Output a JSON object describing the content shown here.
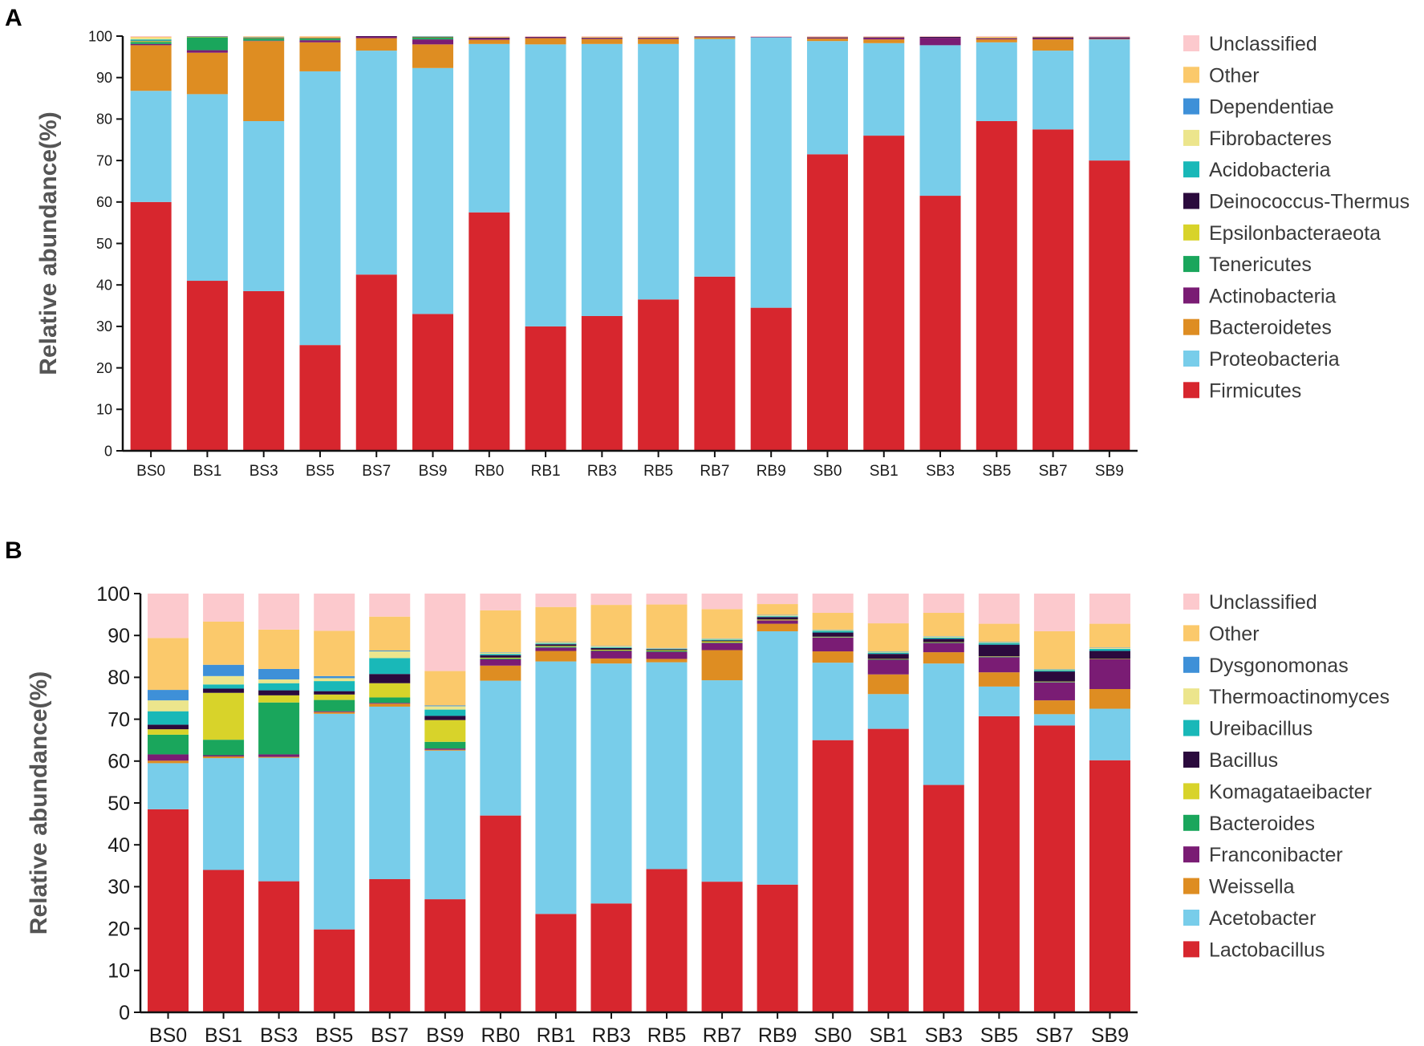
{
  "panels": [
    {
      "label": "A"
    },
    {
      "label": "B"
    }
  ],
  "chart_data": [
    {
      "type": "bar",
      "stacked": true,
      "title": "",
      "xlabel": "",
      "ylabel": "Relative abundance(%)",
      "ylim": [
        0,
        100
      ],
      "yticks": [
        "0",
        "10",
        "20",
        "30",
        "40",
        "50",
        "60",
        "70",
        "80",
        "90",
        "100"
      ],
      "categories": [
        "BS0",
        "BS1",
        "BS3",
        "BS5",
        "BS7",
        "BS9",
        "RB0",
        "RB1",
        "RB3",
        "RB5",
        "RB7",
        "RB9",
        "SB0",
        "SB1",
        "SB3",
        "SB5",
        "SB7",
        "SB9"
      ],
      "legend_position": "right",
      "series": [
        {
          "name": "Firmicutes",
          "color": "#d7262e",
          "values": [
            60,
            41,
            38.5,
            25.5,
            42.5,
            33,
            57.5,
            30,
            32.5,
            36.5,
            42,
            34.5,
            71.5,
            76,
            61.5,
            79.5,
            77.5,
            70
          ]
        },
        {
          "name": "Proteobacteria",
          "color": "#78cdea",
          "values": [
            26.8,
            45,
            41,
            66,
            54,
            59.3,
            40.6,
            68,
            65.6,
            61.6,
            57.3,
            65.2,
            27.3,
            22.3,
            36.3,
            19,
            19,
            29.2
          ]
        },
        {
          "name": "Bacteroidetes",
          "color": "#de8d22",
          "values": [
            11,
            10,
            19.3,
            7,
            3,
            5.7,
            1,
            1.5,
            1.2,
            1.2,
            0.4,
            0,
            0.6,
            0.9,
            0,
            0.7,
            2.7,
            0.1
          ]
        },
        {
          "name": "Actinobacteria",
          "color": "#7a1c74",
          "values": [
            0.3,
            0.6,
            0.1,
            0.5,
            0.4,
            1.2,
            0.3,
            0.2,
            0.2,
            0.2,
            0.1,
            0.1,
            0.2,
            0.4,
            1.8,
            0.2,
            0.3,
            0.2
          ]
        },
        {
          "name": "Tenericutes",
          "color": "#1aa65c",
          "values": [
            0.5,
            3.1,
            0.5,
            0.4,
            0,
            0.4,
            0,
            0,
            0,
            0,
            0,
            0,
            0,
            0,
            0,
            0,
            0,
            0
          ]
        },
        {
          "name": "Epsilonbacteraeota",
          "color": "#d8d32a",
          "values": [
            0.2,
            0.1,
            0.1,
            0.1,
            0,
            0.1,
            0,
            0,
            0,
            0,
            0,
            0,
            0,
            0,
            0,
            0,
            0,
            0
          ]
        },
        {
          "name": "Deinococcus-Thermus",
          "color": "#2b0a3d",
          "values": [
            0.1,
            0.1,
            0.1,
            0.1,
            0.1,
            0.1,
            0.2,
            0.1,
            0.1,
            0.1,
            0.1,
            0,
            0.1,
            0.1,
            0.2,
            0.1,
            0.2,
            0.2
          ]
        },
        {
          "name": "Acidobacteria",
          "color": "#19b8b8",
          "values": [
            0.3,
            0,
            0.1,
            0,
            0,
            0.1,
            0,
            0,
            0,
            0,
            0,
            0,
            0,
            0,
            0,
            0,
            0,
            0
          ]
        },
        {
          "name": "Fibrobacteres",
          "color": "#ece58c",
          "values": [
            0.4,
            0,
            0,
            0,
            0,
            0,
            0,
            0,
            0,
            0,
            0,
            0,
            0,
            0,
            0,
            0,
            0,
            0
          ]
        },
        {
          "name": "Dependentiae",
          "color": "#3e90d8",
          "values": [
            0,
            0,
            0,
            0,
            0,
            0,
            0,
            0,
            0,
            0,
            0,
            0,
            0,
            0,
            0,
            0,
            0,
            0
          ]
        },
        {
          "name": "Other",
          "color": "#fbc96b",
          "values": [
            0.2,
            0,
            0.2,
            0.3,
            0,
            0,
            0.2,
            0,
            0.2,
            0.2,
            0,
            0,
            0.1,
            0.1,
            0,
            0.3,
            0.1,
            0
          ]
        },
        {
          "name": "Unclassified",
          "color": "#fcc9cd",
          "values": [
            0.2,
            0,
            0.1,
            0.1,
            0,
            0.1,
            0.2,
            0.2,
            0.2,
            0.2,
            0.1,
            0.2,
            0.2,
            0.2,
            0.2,
            0.2,
            0.2,
            0.3
          ]
        }
      ]
    },
    {
      "type": "bar",
      "stacked": true,
      "title": "",
      "xlabel": "",
      "ylabel": "Relative abundance(%)",
      "ylim": [
        0,
        100
      ],
      "yticks": [
        "0",
        "10",
        "20",
        "30",
        "40",
        "50",
        "60",
        "70",
        "80",
        "90",
        "100"
      ],
      "categories": [
        "BS0",
        "BS1",
        "BS3",
        "BS5",
        "BS7",
        "BS9",
        "RB0",
        "RB1",
        "RB3",
        "RB5",
        "RB7",
        "RB9",
        "SB0",
        "SB1",
        "SB3",
        "SB5",
        "SB7",
        "SB9"
      ],
      "legend_position": "right",
      "series": [
        {
          "name": "Lactobacillus",
          "color": "#d7262e",
          "values": [
            48.5,
            34,
            31.3,
            19.8,
            31.8,
            27,
            47,
            23.5,
            26,
            34.2,
            31.2,
            30.5,
            65,
            67.7,
            54.3,
            70.7,
            68.5,
            60.2
          ]
        },
        {
          "name": "Acetobacter",
          "color": "#78cdea",
          "values": [
            11,
            26.7,
            29.5,
            51.5,
            41.2,
            35.5,
            32.2,
            60.3,
            57.3,
            49.4,
            48.1,
            60.5,
            18.5,
            8.3,
            29,
            7.1,
            2.7,
            12.3
          ]
        },
        {
          "name": "Weissella",
          "color": "#de8d22",
          "values": [
            0.6,
            0.4,
            0.2,
            0.4,
            0.7,
            0.2,
            3.6,
            2.5,
            1.2,
            0.8,
            7.2,
            1.8,
            2.7,
            4.7,
            2.7,
            3.4,
            3.3,
            4.7
          ]
        },
        {
          "name": "Franconibacter",
          "color": "#7a1c74",
          "values": [
            1.5,
            0.3,
            0.6,
            0.2,
            0.2,
            0.3,
            1.5,
            0.8,
            1.8,
            1.7,
            1.7,
            0.8,
            3.3,
            3.5,
            2.2,
            3.6,
            4.3,
            7.1
          ]
        },
        {
          "name": "Bacteroides",
          "color": "#1aa65c",
          "values": [
            4.7,
            3.7,
            12.4,
            2.7,
            1.3,
            1.6,
            0.2,
            0.2,
            0.1,
            0.2,
            0.1,
            0,
            0.1,
            0.1,
            0.1,
            0.1,
            0.1,
            0
          ]
        },
        {
          "name": "Komagataeibacter",
          "color": "#d8d32a",
          "values": [
            1.3,
            11.2,
            1.7,
            1.3,
            3.4,
            5.2,
            0.2,
            0.2,
            0.2,
            0.2,
            0.3,
            0.2,
            0.1,
            0.1,
            0.1,
            0.1,
            0.1,
            0.1
          ]
        },
        {
          "name": "Bacillus",
          "color": "#2b0a3d",
          "values": [
            1.1,
            1,
            1.2,
            0.8,
            2.2,
            1,
            0.6,
            0.4,
            0.4,
            0.2,
            0.2,
            0.6,
            1,
            1.2,
            0.8,
            2.8,
            2.4,
            1.9
          ]
        },
        {
          "name": "Ureibacillus",
          "color": "#19b8b8",
          "values": [
            3.2,
            1,
            1.7,
            2.4,
            3.8,
            1.5,
            0.3,
            0.2,
            0.2,
            0.1,
            0.2,
            0.2,
            0.4,
            0.3,
            0.3,
            0.4,
            0.3,
            0.5
          ]
        },
        {
          "name": "Thermoactinomyces",
          "color": "#ece58c",
          "values": [
            2.6,
            2,
            0.9,
            0.7,
            1.6,
            0.8,
            0.3,
            0.2,
            0.2,
            0.1,
            0.2,
            0.2,
            0.2,
            0.2,
            0.2,
            0.2,
            0.2,
            0.2
          ]
        },
        {
          "name": "Dysgonomonas",
          "color": "#3e90d8",
          "values": [
            2.5,
            2.7,
            2.5,
            0.5,
            0.2,
            0.2,
            0.1,
            0.1,
            0.1,
            0.1,
            0.1,
            0.1,
            0.1,
            0.1,
            0.1,
            0.1,
            0.1,
            0.1
          ]
        },
        {
          "name": "Other",
          "color": "#fbc96b",
          "values": [
            12.4,
            10.3,
            9.4,
            10.8,
            8.1,
            8.2,
            10,
            8.4,
            9.8,
            10.4,
            7,
            2.6,
            4,
            6.7,
            5.6,
            4.3,
            9,
            5.7
          ]
        },
        {
          "name": "Unclassified",
          "color": "#fcc9cd",
          "values": [
            10.6,
            6.7,
            8.6,
            8.9,
            5.5,
            18.5,
            4,
            3.2,
            2.7,
            2.6,
            3.7,
            2.5,
            4.6,
            7.1,
            4.6,
            7.2,
            9,
            7.2
          ]
        }
      ]
    }
  ]
}
